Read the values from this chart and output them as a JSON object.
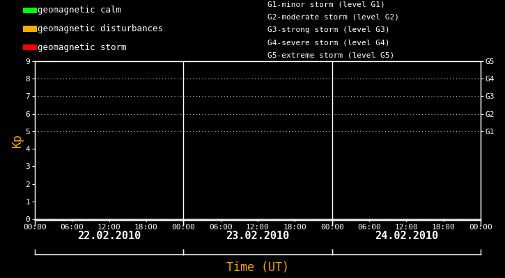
{
  "background_color": "#000000",
  "plot_bg_color": "#000000",
  "title": "Time (UT)",
  "title_color": "#FFA500",
  "ylabel": "Kp",
  "ylabel_color": "#FFA500",
  "ylim": [
    0,
    9
  ],
  "yticks": [
    0,
    1,
    2,
    3,
    4,
    5,
    6,
    7,
    8,
    9
  ],
  "grid_color": "#ffffff",
  "grid_y_values": [
    5,
    6,
    7,
    8,
    9
  ],
  "axis_color": "#ffffff",
  "tick_color": "#ffffff",
  "days": [
    "22.02.2010",
    "23.02.2010",
    "24.02.2010"
  ],
  "legend_items": [
    {
      "label": "geomagnetic calm",
      "color": "#00ff00"
    },
    {
      "label": "geomagnetic disturbances",
      "color": "#ffaa00"
    },
    {
      "label": "geomagnetic storm",
      "color": "#ff0000"
    }
  ],
  "storm_labels": [
    "G1-minor storm (level G1)",
    "G2-moderate storm (level G2)",
    "G3-strong storm (level G3)",
    "G4-severe storm (level G4)",
    "G5-extreme storm (level G5)"
  ],
  "right_axis_labels": [
    "G5",
    "G4",
    "G3",
    "G2",
    "G1"
  ],
  "right_axis_y_values": [
    9,
    8,
    7,
    6,
    5
  ],
  "divider_color": "#ffffff",
  "font_family": "monospace",
  "font_size": 8,
  "tick_font_size": 8,
  "day_label_font_size": 11,
  "day_label_color": "#ffffff",
  "legend_font_size": 9,
  "storm_font_size": 8
}
